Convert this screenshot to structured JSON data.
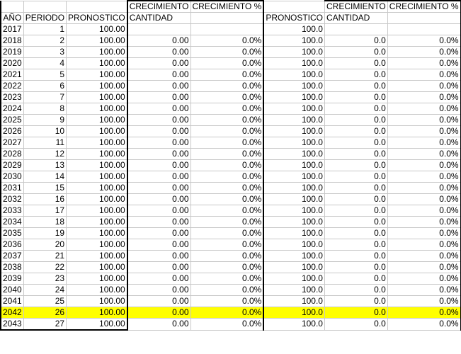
{
  "headers": {
    "row1": [
      "",
      "",
      "",
      "CRECIMIENTO",
      "CRECIMIENTO %",
      "",
      "CRECIMIENTO",
      "CRECIMIENTO %"
    ],
    "row2": [
      "AÑO",
      "PERIODO",
      "PRONOSTICO",
      "CANTIDAD",
      "",
      "PRONOSTICO",
      "CANTIDAD",
      ""
    ]
  },
  "highlight_color": "#ffff00",
  "highlighted_row_year": "2042",
  "rows": [
    [
      "2017",
      "1",
      "100.00",
      "",
      "",
      "100.0",
      "",
      ""
    ],
    [
      "2018",
      "2",
      "100.00",
      "0.00",
      "0.0%",
      "100.0",
      "0.0",
      "0.0%"
    ],
    [
      "2019",
      "3",
      "100.00",
      "0.00",
      "0.0%",
      "100.0",
      "0.0",
      "0.0%"
    ],
    [
      "2020",
      "4",
      "100.00",
      "0.00",
      "0.0%",
      "100.0",
      "0.0",
      "0.0%"
    ],
    [
      "2021",
      "5",
      "100.00",
      "0.00",
      "0.0%",
      "100.0",
      "0.0",
      "0.0%"
    ],
    [
      "2022",
      "6",
      "100.00",
      "0.00",
      "0.0%",
      "100.0",
      "0.0",
      "0.0%"
    ],
    [
      "2023",
      "7",
      "100.00",
      "0.00",
      "0.0%",
      "100.0",
      "0.0",
      "0.0%"
    ],
    [
      "2024",
      "8",
      "100.00",
      "0.00",
      "0.0%",
      "100.0",
      "0.0",
      "0.0%"
    ],
    [
      "2025",
      "9",
      "100.00",
      "0.00",
      "0.0%",
      "100.0",
      "0.0",
      "0.0%"
    ],
    [
      "2026",
      "10",
      "100.00",
      "0.00",
      "0.0%",
      "100.0",
      "0.0",
      "0.0%"
    ],
    [
      "2027",
      "11",
      "100.00",
      "0.00",
      "0.0%",
      "100.0",
      "0.0",
      "0.0%"
    ],
    [
      "2028",
      "12",
      "100.00",
      "0.00",
      "0.0%",
      "100.0",
      "0.0",
      "0.0%"
    ],
    [
      "2029",
      "13",
      "100.00",
      "0.00",
      "0.0%",
      "100.0",
      "0.0",
      "0.0%"
    ],
    [
      "2030",
      "14",
      "100.00",
      "0.00",
      "0.0%",
      "100.0",
      "0.0",
      "0.0%"
    ],
    [
      "2031",
      "15",
      "100.00",
      "0.00",
      "0.0%",
      "100.0",
      "0.0",
      "0.0%"
    ],
    [
      "2032",
      "16",
      "100.00",
      "0.00",
      "0.0%",
      "100.0",
      "0.0",
      "0.0%"
    ],
    [
      "2033",
      "17",
      "100.00",
      "0.00",
      "0.0%",
      "100.0",
      "0.0",
      "0.0%"
    ],
    [
      "2034",
      "18",
      "100.00",
      "0.00",
      "0.0%",
      "100.0",
      "0.0",
      "0.0%"
    ],
    [
      "2035",
      "19",
      "100.00",
      "0.00",
      "0.0%",
      "100.0",
      "0.0",
      "0.0%"
    ],
    [
      "2036",
      "20",
      "100.00",
      "0.00",
      "0.0%",
      "100.0",
      "0.0",
      "0.0%"
    ],
    [
      "2037",
      "21",
      "100.00",
      "0.00",
      "0.0%",
      "100.0",
      "0.0",
      "0.0%"
    ],
    [
      "2038",
      "22",
      "100.00",
      "0.00",
      "0.0%",
      "100.0",
      "0.0",
      "0.0%"
    ],
    [
      "2039",
      "23",
      "100.00",
      "0.00",
      "0.0%",
      "100.0",
      "0.0",
      "0.0%"
    ],
    [
      "2040",
      "24",
      "100.00",
      "0.00",
      "0.0%",
      "100.0",
      "0.0",
      "0.0%"
    ],
    [
      "2041",
      "25",
      "100.00",
      "0.00",
      "0.0%",
      "100.0",
      "0.0",
      "0.0%"
    ],
    [
      "2042",
      "26",
      "100.00",
      "0.00",
      "0.0%",
      "100.0",
      "0.0",
      "0.0%"
    ],
    [
      "2043",
      "27",
      "100.00",
      "0.00",
      "0.0%",
      "100.0",
      "0.0",
      "0.0%"
    ]
  ]
}
